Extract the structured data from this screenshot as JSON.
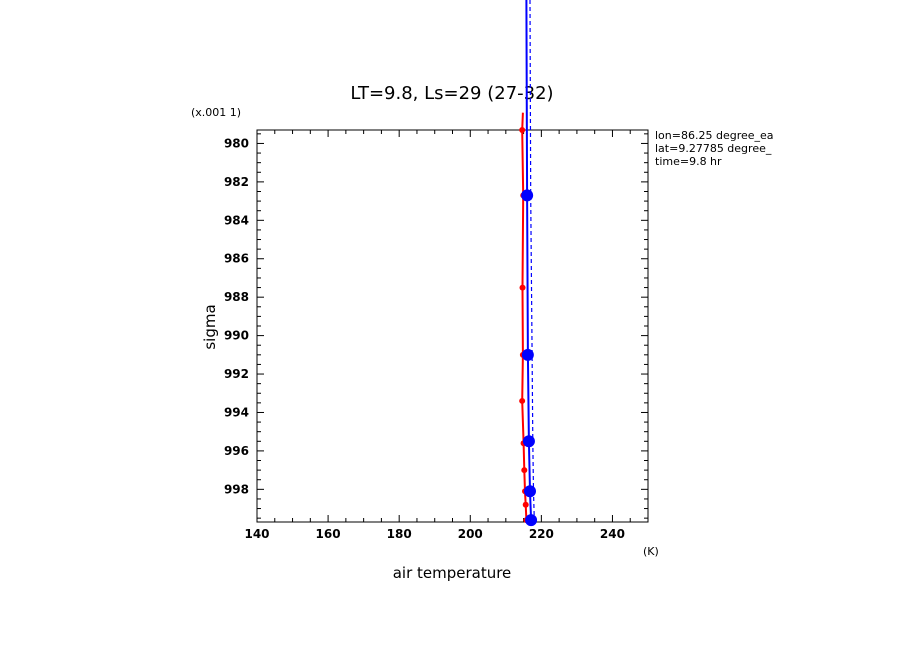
{
  "chart_data": {
    "type": "line",
    "title": "LT=9.8, Ls=29 (27-32)",
    "xlabel": "air temperature",
    "x_unit": "(K)",
    "ylabel": "sigma",
    "y_multiplier": "(x.001 1)",
    "xlim": [
      140,
      250
    ],
    "ylim": [
      979.3,
      999.7
    ],
    "y_inverted": true,
    "x_ticks": [
      140,
      160,
      180,
      200,
      220,
      240
    ],
    "y_ticks": [
      980,
      982,
      984,
      986,
      988,
      990,
      992,
      994,
      996,
      998
    ],
    "grid": false,
    "annotations": [
      "lon=86.25 degree_ea",
      "lat=9.27785 degree_",
      "time=9.8 hr"
    ],
    "series": [
      {
        "color": "#ff0000",
        "style": "solid",
        "marker": "small-dot",
        "points": [
          {
            "x": 214.8,
            "y": 978.4
          },
          {
            "x": 214.6,
            "y": 979.3
          },
          {
            "x": 214.9,
            "y": 982.7
          },
          {
            "x": 214.7,
            "y": 987.5
          },
          {
            "x": 214.8,
            "y": 991.0
          },
          {
            "x": 214.6,
            "y": 993.4
          },
          {
            "x": 215.0,
            "y": 995.6
          },
          {
            "x": 215.2,
            "y": 997.0
          },
          {
            "x": 215.4,
            "y": 998.1
          },
          {
            "x": 215.6,
            "y": 998.8
          },
          {
            "x": 215.8,
            "y": 999.6
          }
        ]
      },
      {
        "color": "#0000ff",
        "style": "solid",
        "marker": "large-dot",
        "points": [
          {
            "x": 215.8,
            "y": 972.0
          },
          {
            "x": 216.0,
            "y": 982.7
          },
          {
            "x": 216.2,
            "y": 991.0
          },
          {
            "x": 216.5,
            "y": 995.5
          },
          {
            "x": 216.8,
            "y": 998.1
          },
          {
            "x": 217.1,
            "y": 999.6
          }
        ]
      },
      {
        "color": "#0000ff",
        "style": "dashed",
        "marker": "none",
        "points": [
          {
            "x": 216.8,
            "y": 972.0
          },
          {
            "x": 217.0,
            "y": 982.7
          },
          {
            "x": 217.4,
            "y": 991.0
          },
          {
            "x": 217.6,
            "y": 995.5
          },
          {
            "x": 217.8,
            "y": 998.1
          },
          {
            "x": 218.0,
            "y": 999.6
          }
        ]
      }
    ]
  }
}
